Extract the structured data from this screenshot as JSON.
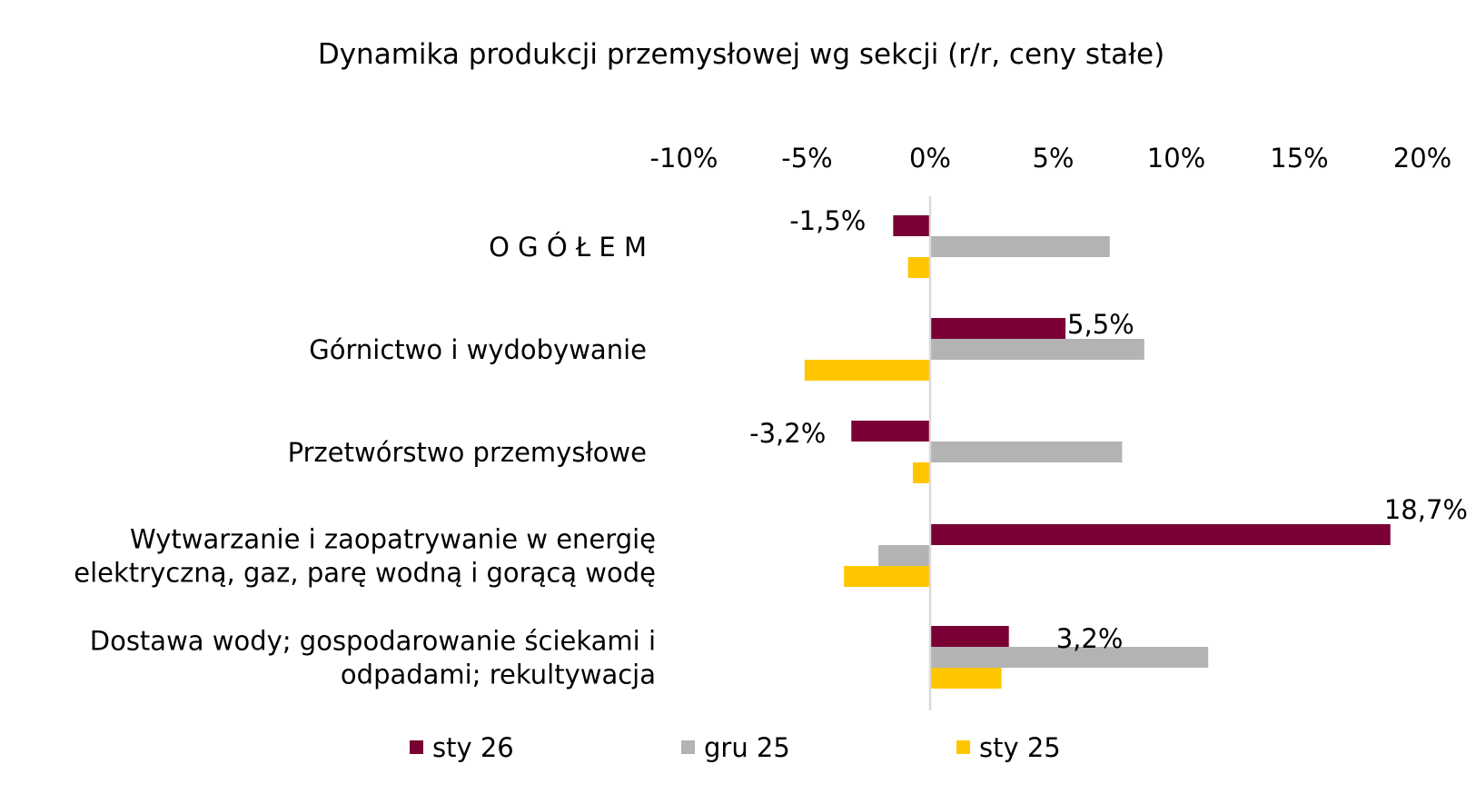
{
  "chart_data": {
    "type": "bar",
    "orientation": "horizontal",
    "title": "Dynamika produkcji przemysłowej wg sekcji (r/r, ceny stałe)",
    "categories": [
      [
        "O G Ó Ł E M"
      ],
      [
        "Górnictwo i wydobywanie"
      ],
      [
        "Przetwórstwo przemysłowe"
      ],
      [
        "Wytwarzanie i zaopatrywanie w energię",
        "elektryczną, gaz, parę wodną i gorącą wodę"
      ],
      [
        "Dostawa wody; gospodarowanie ściekami i",
        "odpadami; rekultywacja"
      ]
    ],
    "series": [
      {
        "name": "sty 26",
        "color": "#7A0036",
        "values": [
          -1.5,
          5.5,
          -3.2,
          18.7,
          3.2
        ],
        "data_labels": [
          "-1,5%",
          "5,5%",
          "-3,2%",
          "18,7%",
          "3,2%"
        ]
      },
      {
        "name": "gru 25",
        "color": "#B3B3B3",
        "values": [
          7.3,
          8.7,
          7.8,
          -2.1,
          11.3
        ]
      },
      {
        "name": "sty 25",
        "color": "#FFC600",
        "values": [
          -0.9,
          -5.1,
          -0.7,
          -3.5,
          2.9
        ]
      }
    ],
    "xlim": [
      -10,
      20
    ],
    "x_ticks": [
      -10,
      -5,
      0,
      5,
      10,
      15,
      20
    ],
    "x_tick_labels": [
      "-10%",
      "-5%",
      "0%",
      "5%",
      "10%",
      "15%",
      "20%"
    ],
    "x_axis_position": "top",
    "grid": false,
    "legend_position": "bottom",
    "xlabel": "",
    "ylabel": ""
  }
}
